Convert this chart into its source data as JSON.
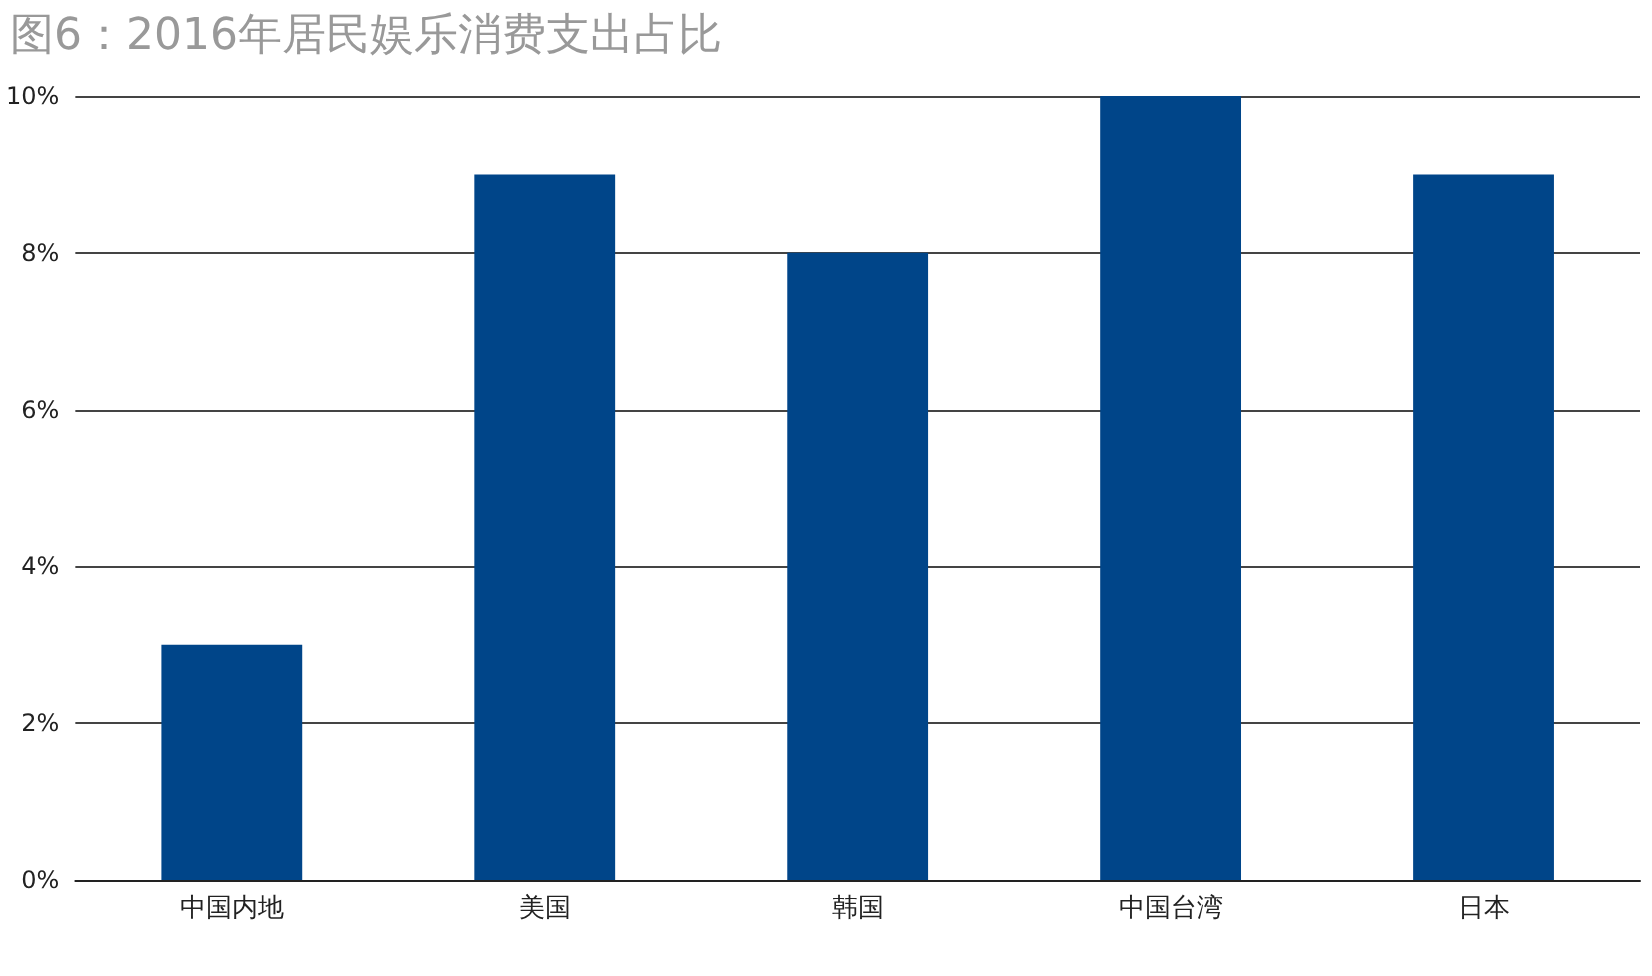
{
  "chart_data": {
    "type": "bar",
    "title": "图6：2016年居民娱乐消费支出占比",
    "categories": [
      "中国内地",
      "美国",
      "韩国",
      "中国台湾",
      "日本"
    ],
    "values": [
      3,
      9,
      8,
      10,
      9
    ],
    "color": "#004589",
    "ylim": [
      0,
      10
    ],
    "yticks": [
      {
        "value": 0,
        "label": "0%"
      },
      {
        "value": 2,
        "label": "2%"
      },
      {
        "value": 4,
        "label": "4%"
      },
      {
        "value": 6,
        "label": "6%"
      },
      {
        "value": 8,
        "label": "8%"
      },
      {
        "value": 10,
        "label": "10%"
      }
    ],
    "grid": "y"
  }
}
